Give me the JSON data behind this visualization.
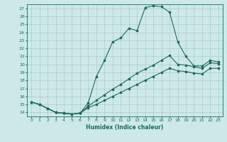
{
  "xlabel": "Humidex (Indice chaleur)",
  "xlim": [
    -0.5,
    23.5
  ],
  "ylim": [
    13.5,
    27.5
  ],
  "xticks": [
    0,
    1,
    2,
    3,
    4,
    5,
    6,
    7,
    8,
    9,
    10,
    11,
    12,
    13,
    14,
    15,
    16,
    17,
    18,
    19,
    20,
    21,
    22,
    23
  ],
  "yticks": [
    14,
    15,
    16,
    17,
    18,
    19,
    20,
    21,
    22,
    23,
    24,
    25,
    26,
    27
  ],
  "background_color": "#cce8e8",
  "grid_color": "#aacccc",
  "line_color": "#1a6b5a",
  "line1_x": [
    0,
    1,
    2,
    3,
    4,
    5,
    6,
    7,
    8,
    9,
    10,
    11,
    12,
    13,
    14,
    15,
    16,
    17,
    18,
    19,
    20,
    21,
    22,
    23
  ],
  "line1_y": [
    15.3,
    15.0,
    14.5,
    14.0,
    13.9,
    13.8,
    13.9,
    15.2,
    18.5,
    20.5,
    22.8,
    23.3,
    24.5,
    24.2,
    27.1,
    27.3,
    27.2,
    26.5,
    22.8,
    21.0,
    19.8,
    19.8,
    20.5,
    20.3
  ],
  "line2_x": [
    0,
    1,
    2,
    3,
    4,
    5,
    6,
    7,
    8,
    9,
    10,
    11,
    12,
    13,
    14,
    15,
    16,
    17,
    18,
    19,
    20,
    21,
    22,
    23
  ],
  "line2_y": [
    15.3,
    15.0,
    14.5,
    14.0,
    13.9,
    13.8,
    13.9,
    14.8,
    15.5,
    16.2,
    16.9,
    17.5,
    18.2,
    18.9,
    19.4,
    19.9,
    20.5,
    21.1,
    20.0,
    19.9,
    19.7,
    19.5,
    20.2,
    20.1
  ],
  "line3_x": [
    0,
    1,
    2,
    3,
    4,
    5,
    6,
    7,
    8,
    9,
    10,
    11,
    12,
    13,
    14,
    15,
    16,
    17,
    18,
    19,
    20,
    21,
    22,
    23
  ],
  "line3_y": [
    15.3,
    15.0,
    14.5,
    14.0,
    13.9,
    13.8,
    13.9,
    14.6,
    15.0,
    15.5,
    16.0,
    16.5,
    17.0,
    17.5,
    18.0,
    18.5,
    19.0,
    19.5,
    19.2,
    19.1,
    18.9,
    18.8,
    19.5,
    19.5
  ]
}
